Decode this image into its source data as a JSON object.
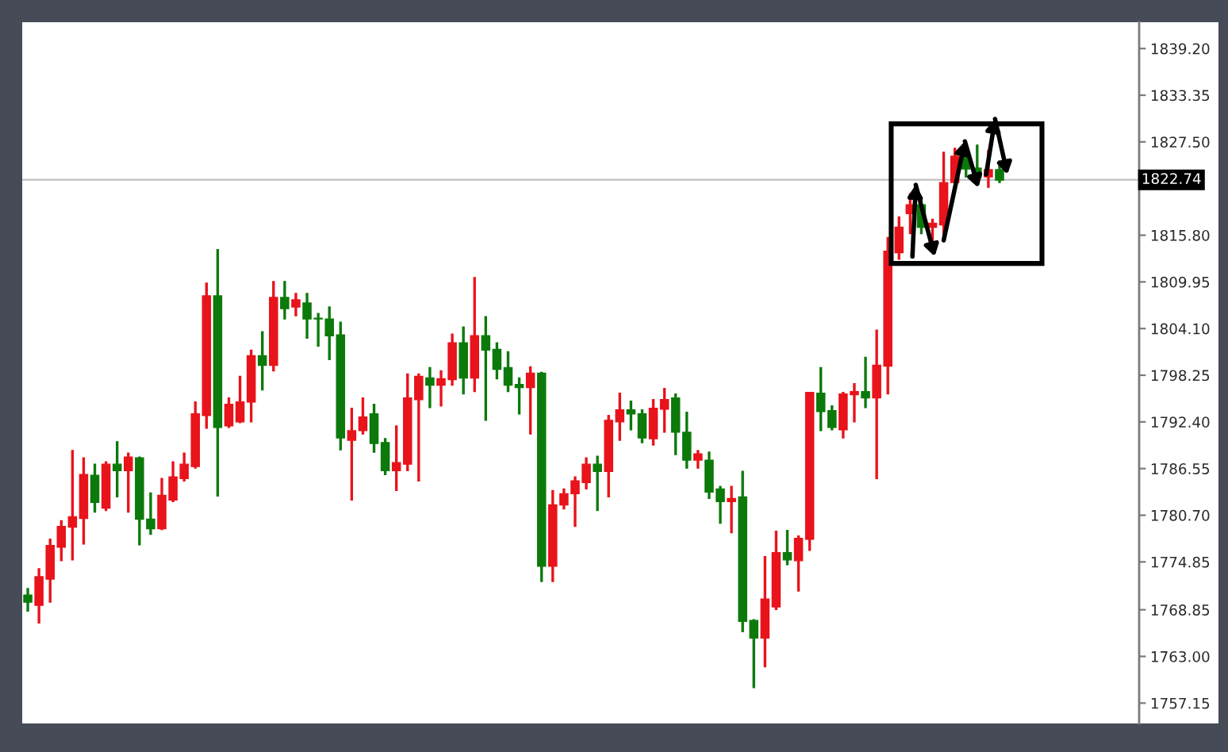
{
  "chart_data": {
    "type": "candlestick",
    "categories": [
      null,
      null,
      null,
      null,
      null,
      null,
      null,
      null,
      null,
      null,
      null,
      null,
      null,
      null,
      null,
      null,
      null,
      null,
      null,
      null,
      null,
      null,
      null,
      null,
      null,
      null,
      null,
      null,
      null,
      null,
      null,
      null,
      null,
      null,
      null,
      null,
      null,
      null,
      null,
      null,
      null,
      null,
      null,
      null,
      null,
      null,
      null,
      null,
      null,
      null,
      null,
      null,
      null,
      null,
      null,
      null,
      null,
      null,
      null,
      null,
      null,
      null,
      null,
      null,
      null,
      null,
      null,
      null,
      null,
      null,
      null,
      null,
      null,
      null,
      null,
      null,
      null,
      null,
      null,
      null,
      null,
      null,
      null,
      null,
      null,
      null,
      null,
      null,
      null,
      null,
      null,
      null,
      null,
      null,
      null,
      null,
      null,
      null,
      null,
      null
    ],
    "ohlc": [
      [
        1770.7,
        1771.5,
        1768.7,
        1769.8
      ],
      [
        1769.4,
        1774.0,
        1767.2,
        1773.0
      ],
      [
        1772.7,
        1777.7,
        1769.8,
        1776.9
      ],
      [
        1776.7,
        1780.0,
        1775.0,
        1779.3
      ],
      [
        1779.2,
        1788.8,
        1775.1,
        1780.5
      ],
      [
        1780.3,
        1787.9,
        1777.1,
        1785.8
      ],
      [
        1785.7,
        1787.1,
        1781.1,
        1782.3
      ],
      [
        1781.6,
        1787.4,
        1781.3,
        1787.1
      ],
      [
        1787.1,
        1789.9,
        1783.0,
        1786.3
      ],
      [
        1786.3,
        1788.5,
        1781.1,
        1788.0
      ],
      [
        1787.9,
        1788.0,
        1777.0,
        1780.2
      ],
      [
        1780.2,
        1783.5,
        1778.3,
        1779.0
      ],
      [
        1779.0,
        1785.3,
        1778.9,
        1783.2
      ],
      [
        1782.6,
        1787.4,
        1782.4,
        1785.5
      ],
      [
        1785.3,
        1788.5,
        1785.0,
        1787.1
      ],
      [
        1786.8,
        1794.9,
        1786.6,
        1793.4
      ],
      [
        1793.2,
        1809.8,
        1791.6,
        1808.2
      ],
      [
        1808.2,
        1814.0,
        1783.1,
        1791.7
      ],
      [
        1791.9,
        1795.4,
        1791.7,
        1794.6
      ],
      [
        1792.4,
        1798.1,
        1792.3,
        1794.9
      ],
      [
        1794.9,
        1801.4,
        1792.4,
        1800.7
      ],
      [
        1800.7,
        1803.7,
        1796.4,
        1799.5
      ],
      [
        1799.5,
        1810.0,
        1798.8,
        1808.0
      ],
      [
        1808.0,
        1810.0,
        1805.3,
        1806.6
      ],
      [
        1806.8,
        1808.5,
        1805.7,
        1807.7
      ],
      [
        1807.3,
        1808.5,
        1802.9,
        1805.3
      ],
      [
        1805.4,
        1806.0,
        1801.9,
        1805.3
      ],
      [
        1805.3,
        1806.8,
        1800.2,
        1803.2
      ],
      [
        1803.3,
        1804.9,
        1788.9,
        1790.4
      ],
      [
        1790.1,
        1794.1,
        1782.6,
        1791.3
      ],
      [
        1791.3,
        1795.4,
        1790.9,
        1793.0
      ],
      [
        1793.4,
        1794.6,
        1788.6,
        1789.7
      ],
      [
        1789.8,
        1790.3,
        1785.8,
        1786.3
      ],
      [
        1786.3,
        1791.9,
        1783.8,
        1787.3
      ],
      [
        1787.1,
        1798.4,
        1786.3,
        1795.4
      ],
      [
        1795.2,
        1798.4,
        1785.0,
        1798.1
      ],
      [
        1797.9,
        1799.2,
        1794.2,
        1797.0
      ],
      [
        1797.0,
        1798.8,
        1794.4,
        1797.8
      ],
      [
        1797.7,
        1803.4,
        1797.0,
        1802.3
      ],
      [
        1802.3,
        1804.3,
        1795.9,
        1797.9
      ],
      [
        1797.9,
        1810.5,
        1796.2,
        1803.2
      ],
      [
        1803.2,
        1805.6,
        1792.6,
        1801.4
      ],
      [
        1801.5,
        1802.3,
        1797.8,
        1799.0
      ],
      [
        1799.2,
        1801.2,
        1796.2,
        1797.0
      ],
      [
        1797.1,
        1797.9,
        1793.4,
        1796.7
      ],
      [
        1796.7,
        1799.3,
        1790.9,
        1798.5
      ],
      [
        1798.5,
        1798.6,
        1772.4,
        1774.3
      ],
      [
        1774.3,
        1783.8,
        1772.4,
        1782.0
      ],
      [
        1782.0,
        1784.0,
        1781.5,
        1783.4
      ],
      [
        1783.4,
        1785.5,
        1779.3,
        1785.0
      ],
      [
        1784.8,
        1787.9,
        1784.0,
        1787.1
      ],
      [
        1787.1,
        1788.1,
        1781.3,
        1786.2
      ],
      [
        1786.2,
        1793.2,
        1783.0,
        1792.6
      ],
      [
        1792.4,
        1796.0,
        1790.1,
        1793.9
      ],
      [
        1793.9,
        1795.0,
        1791.4,
        1793.4
      ],
      [
        1793.4,
        1793.9,
        1789.8,
        1790.4
      ],
      [
        1790.3,
        1795.2,
        1789.5,
        1794.1
      ],
      [
        1794.0,
        1796.6,
        1791.1,
        1795.2
      ],
      [
        1795.4,
        1795.9,
        1788.3,
        1791.1
      ],
      [
        1791.1,
        1793.6,
        1786.6,
        1787.6
      ],
      [
        1787.6,
        1788.8,
        1786.6,
        1788.4
      ],
      [
        1787.6,
        1788.6,
        1782.8,
        1783.6
      ],
      [
        1784.0,
        1784.3,
        1779.7,
        1782.4
      ],
      [
        1782.4,
        1784.3,
        1778.5,
        1782.8
      ],
      [
        1783.0,
        1786.2,
        1766.1,
        1767.4
      ],
      [
        1767.5,
        1767.6,
        1759.1,
        1765.3
      ],
      [
        1765.3,
        1775.5,
        1761.7,
        1770.2
      ],
      [
        1769.2,
        1778.7,
        1768.9,
        1776.0
      ],
      [
        1776.0,
        1778.8,
        1774.5,
        1775.1
      ],
      [
        1775.0,
        1778.1,
        1771.2,
        1777.8
      ],
      [
        1777.7,
        1796.1,
        1776.3,
        1796.1
      ],
      [
        1796.0,
        1799.2,
        1791.3,
        1793.7
      ],
      [
        1793.8,
        1794.4,
        1791.4,
        1791.7
      ],
      [
        1791.4,
        1796.1,
        1790.4,
        1795.9
      ],
      [
        1795.8,
        1797.2,
        1792.4,
        1796.2
      ],
      [
        1796.2,
        1800.5,
        1794.2,
        1795.4
      ],
      [
        1795.4,
        1803.9,
        1785.3,
        1799.5
      ],
      [
        1799.4,
        1815.5,
        1795.9,
        1813.8
      ],
      [
        1813.6,
        1818.1,
        1812.8,
        1816.8
      ],
      [
        1818.5,
        1821.0,
        1816.0,
        1819.6
      ],
      [
        1819.6,
        1820.4,
        1816.0,
        1816.8
      ],
      [
        1816.8,
        1817.8,
        1815.1,
        1817.3
      ],
      [
        1817.1,
        1826.2,
        1815.1,
        1822.4
      ],
      [
        1822.4,
        1826.7,
        1822.1,
        1825.7
      ],
      [
        1825.9,
        1827.1,
        1823.1,
        1824.1
      ],
      [
        1824.2,
        1827.1,
        1822.1,
        1823.1
      ],
      [
        1823.1,
        1826.4,
        1821.8,
        1824.0
      ],
      [
        1824.0,
        1825.1,
        1822.4,
        1822.7
      ],
      null,
      null,
      null,
      null,
      null,
      null,
      null,
      null,
      null,
      null,
      null,
      null
    ],
    "colors": [
      "#0b7a0b",
      "#e8131b",
      "#e8131b",
      "#e8131b",
      "#e8131b",
      "#e8131b",
      "#0b7a0b",
      "#e8131b",
      "#0b7a0b",
      "#e8131b",
      "#0b7a0b",
      "#0b7a0b",
      "#e8131b",
      "#e8131b",
      "#e8131b",
      "#e8131b",
      "#e8131b",
      "#0b7a0b",
      "#e8131b",
      "#e8131b",
      "#e8131b",
      "#0b7a0b",
      "#e8131b",
      "#0b7a0b",
      "#e8131b",
      "#0b7a0b",
      "#0b7a0b",
      "#0b7a0b",
      "#0b7a0b",
      "#e8131b",
      "#e8131b",
      "#0b7a0b",
      "#0b7a0b",
      "#e8131b",
      "#e8131b",
      "#e8131b",
      "#0b7a0b",
      "#e8131b",
      "#e8131b",
      "#0b7a0b",
      "#e8131b",
      "#0b7a0b",
      "#0b7a0b",
      "#0b7a0b",
      "#0b7a0b",
      "#e8131b",
      "#0b7a0b",
      "#e8131b",
      "#e8131b",
      "#e8131b",
      "#e8131b",
      "#0b7a0b",
      "#e8131b",
      "#e8131b",
      "#0b7a0b",
      "#0b7a0b",
      "#e8131b",
      "#e8131b",
      "#0b7a0b",
      "#0b7a0b",
      "#e8131b",
      "#0b7a0b",
      "#0b7a0b",
      "#e8131b",
      "#0b7a0b",
      "#0b7a0b",
      "#e8131b",
      "#e8131b",
      "#0b7a0b",
      "#e8131b",
      "#e8131b",
      "#0b7a0b",
      "#0b7a0b",
      "#e8131b",
      "#e8131b",
      "#0b7a0b",
      "#e8131b",
      "#e8131b",
      "#e8131b",
      "#e8131b",
      "#0b7a0b",
      "#e8131b",
      "#e8131b",
      "#e8131b",
      "#0b7a0b",
      "#0b7a0b",
      "#e8131b",
      "#0b7a0b",
      null,
      null,
      null,
      null,
      null,
      null,
      null,
      null,
      null,
      null,
      null,
      null
    ],
    "ylim": [
      1754.6,
      1842.5
    ],
    "yticks": [
      {
        "value": 1839.2,
        "label": "1839.20"
      },
      {
        "value": 1833.35,
        "label": "1833.35"
      },
      {
        "value": 1827.5,
        "label": "1827.50"
      },
      {
        "value": 1821.65,
        "label": null
      },
      {
        "value": 1815.8,
        "label": "1815.80"
      },
      {
        "value": 1809.95,
        "label": "1809.95"
      },
      {
        "value": 1804.1,
        "label": "1804.10"
      },
      {
        "value": 1798.25,
        "label": "1798.25"
      },
      {
        "value": 1792.4,
        "label": "1792.40"
      },
      {
        "value": 1786.55,
        "label": "1786.55"
      },
      {
        "value": 1780.7,
        "label": "1780.70"
      },
      {
        "value": 1774.85,
        "label": "1774.85"
      },
      {
        "value": 1768.85,
        "label": "1768.85"
      },
      {
        "value": 1763.0,
        "label": "1763.00"
      },
      {
        "value": 1757.15,
        "label": "1757.15"
      }
    ],
    "ref_lines": [
      {
        "axis": "y",
        "value": 1822.74,
        "label": "1822.74",
        "color": "#c0c0c0"
      }
    ],
    "tick_labels": "y"
  }
}
